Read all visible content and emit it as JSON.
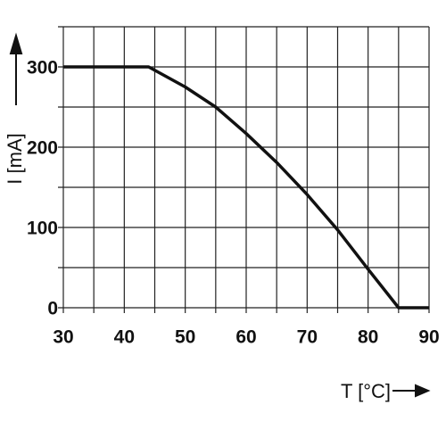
{
  "chart_data": {
    "type": "line",
    "x_label": "T [°C]",
    "y_label": "I [mA]",
    "x": [
      30,
      44,
      50,
      55,
      60,
      65,
      70,
      75,
      80,
      85,
      90
    ],
    "values": [
      300,
      300,
      275,
      250,
      217,
      181,
      141,
      97,
      48,
      0,
      0
    ],
    "color": "#111111",
    "xlim": [
      30,
      90
    ],
    "ylim": [
      0,
      350
    ],
    "xticks": [
      30,
      40,
      50,
      60,
      70,
      80,
      90
    ],
    "yticks": [
      0,
      100,
      200,
      300
    ],
    "xgrid": [
      30,
      35,
      40,
      45,
      50,
      55,
      60,
      65,
      70,
      75,
      80,
      85,
      90
    ],
    "ygrid": [
      0,
      50,
      100,
      150,
      200,
      250,
      300,
      350
    ],
    "grid": true
  }
}
